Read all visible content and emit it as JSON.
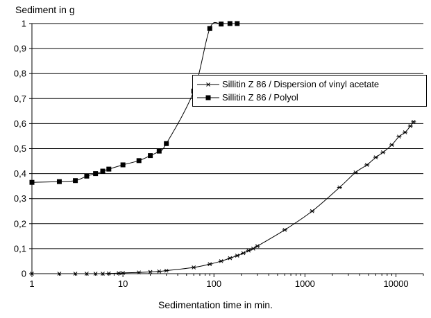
{
  "chart_data": {
    "type": "line",
    "title": "",
    "ylabel": "Sediment in g",
    "xlabel": "Sedimentation time in min.",
    "x_scale": "log",
    "xlim": [
      1,
      20000
    ],
    "ylim": [
      0,
      1
    ],
    "x_ticks": [
      1,
      10,
      100,
      1000,
      10000
    ],
    "x_tick_labels": [
      "1",
      "10",
      "100",
      "1000",
      "10000"
    ],
    "y_ticks": [
      0,
      0.1,
      0.2,
      0.3,
      0.4,
      0.5,
      0.6,
      0.7,
      0.8,
      0.9,
      1
    ],
    "y_tick_labels": [
      "0",
      "0,1",
      "0,2",
      "0,3",
      "0,4",
      "0,5",
      "0,6",
      "0,7",
      "0,8",
      "0,9",
      "1"
    ],
    "grid": "horizontal",
    "legend_position": "upper-right",
    "series": [
      {
        "name": "Sillitin Z 86 / Dispersion of vinyl acetate",
        "marker": "asterisk",
        "color": "#000000",
        "x": [
          1,
          2,
          3,
          4,
          5,
          6,
          7,
          9,
          10,
          15,
          20,
          25,
          30,
          60,
          90,
          120,
          150,
          180,
          210,
          240,
          270,
          300,
          600,
          1200,
          2400,
          3600,
          4800,
          6000,
          7200,
          9000,
          10800,
          12600,
          14400,
          15600
        ],
        "y": [
          0,
          0,
          0,
          0,
          0,
          0,
          0.001,
          0.002,
          0.003,
          0.005,
          0.007,
          0.009,
          0.012,
          0.025,
          0.038,
          0.05,
          0.062,
          0.072,
          0.082,
          0.092,
          0.1,
          0.11,
          0.175,
          0.25,
          0.345,
          0.405,
          0.435,
          0.465,
          0.485,
          0.515,
          0.548,
          0.565,
          0.59,
          0.607
        ]
      },
      {
        "name": "Sillitin Z 86 / Polyol",
        "marker": "square",
        "color": "#000000",
        "x": [
          1,
          2,
          3,
          4,
          5,
          6,
          7,
          10,
          15,
          20,
          25,
          30,
          60,
          90,
          120,
          150,
          180
        ],
        "y": [
          0.365,
          0.368,
          0.372,
          0.39,
          0.4,
          0.41,
          0.418,
          0.435,
          0.452,
          0.472,
          0.49,
          0.52,
          0.73,
          0.98,
          0.998,
          1,
          1
        ]
      }
    ]
  }
}
